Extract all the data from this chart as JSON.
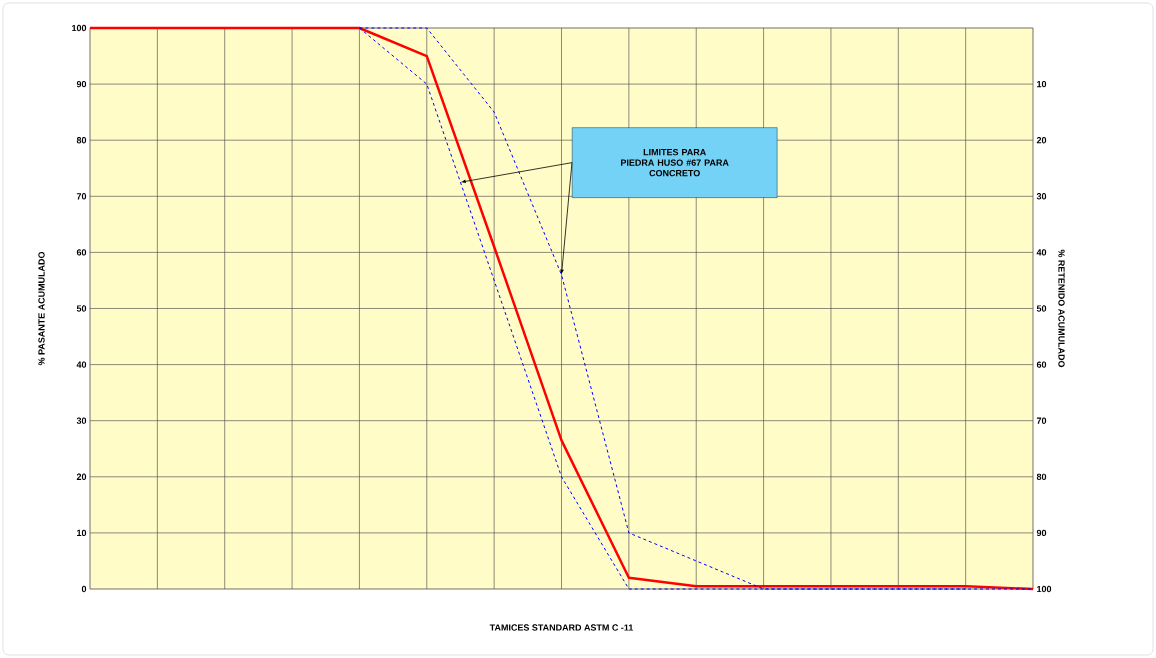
{
  "chart_data": {
    "type": "line",
    "xlabel": "TAMICES STANDARD ASTM C -11",
    "ylabel": "%  PASANTE  ACUMULADO",
    "y2label": "% RETENIDO ACUMULADO",
    "annotations": [
      "LIMITES PARA\nPIEDRA HUSO #67  PARA\nCONCRETO"
    ],
    "categories": [
      null,
      null,
      null,
      null,
      null,
      null,
      null,
      null,
      null,
      null,
      null,
      null,
      null,
      null,
      null
    ],
    "series": [
      {
        "color": "#ff0000",
        "line_style": "solid",
        "values": [
          100,
          100,
          100,
          100,
          100,
          95,
          61,
          26.5,
          2,
          0.5,
          0.5,
          0.5,
          0.5,
          0.5,
          0
        ]
      },
      {
        "color": "#0000ff",
        "line_style": "dashed",
        "values": [
          null,
          null,
          null,
          null,
          100,
          100,
          85,
          56,
          10,
          5,
          0,
          0,
          0,
          0,
          0
        ]
      },
      {
        "color": "#0000ff",
        "line_style": "dashed",
        "values": [
          null,
          null,
          null,
          null,
          100,
          90,
          55,
          20,
          0,
          0,
          0,
          0,
          0,
          0,
          null
        ]
      }
    ],
    "ylim": [
      0,
      100
    ],
    "yticks": [
      0,
      10,
      20,
      30,
      40,
      50,
      60,
      70,
      80,
      90,
      100
    ],
    "y2lim": [
      100,
      0
    ],
    "y2ticks": [
      10,
      20,
      30,
      40,
      50,
      60,
      70,
      80,
      90,
      100
    ],
    "grid": true,
    "legend": false,
    "marker": "none",
    "tick_labels": "y"
  }
}
